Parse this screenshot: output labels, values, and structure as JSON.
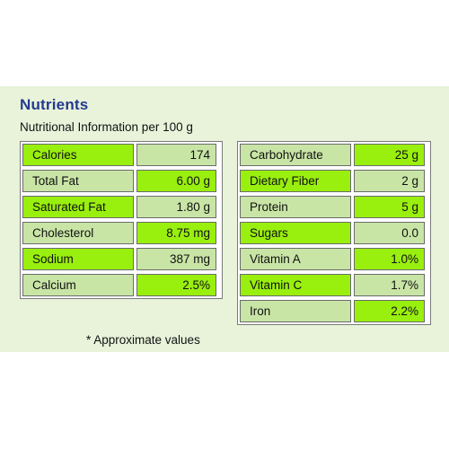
{
  "title": "Nutrients",
  "subtitle": "Nutritional Information per 100 g",
  "left_table": [
    {
      "label": "Calories",
      "value": "174"
    },
    {
      "label": "Total Fat",
      "value": "6.00 g"
    },
    {
      "label": "Saturated Fat",
      "value": "1.80 g"
    },
    {
      "label": "Cholesterol",
      "value": "8.75 mg"
    },
    {
      "label": "Sodium",
      "value": "387 mg"
    },
    {
      "label": "Calcium",
      "value": "2.5%"
    }
  ],
  "right_table": [
    {
      "label": "Carbohydrate",
      "value": "25 g"
    },
    {
      "label": "Dietary Fiber",
      "value": "2 g"
    },
    {
      "label": "Protein",
      "value": "5 g"
    },
    {
      "label": "Sugars",
      "value": "0.0"
    },
    {
      "label": "Vitamin A",
      "value": "1.0%"
    },
    {
      "label": "Vitamin C",
      "value": "1.7%"
    },
    {
      "label": "Iron",
      "value": "2.2%"
    }
  ],
  "note": "* Approximate values",
  "colors": {
    "title": "#233a8f",
    "bright_green": "#99ef0e",
    "pale_green": "#c9e5a6",
    "background": "#e8f3da"
  }
}
